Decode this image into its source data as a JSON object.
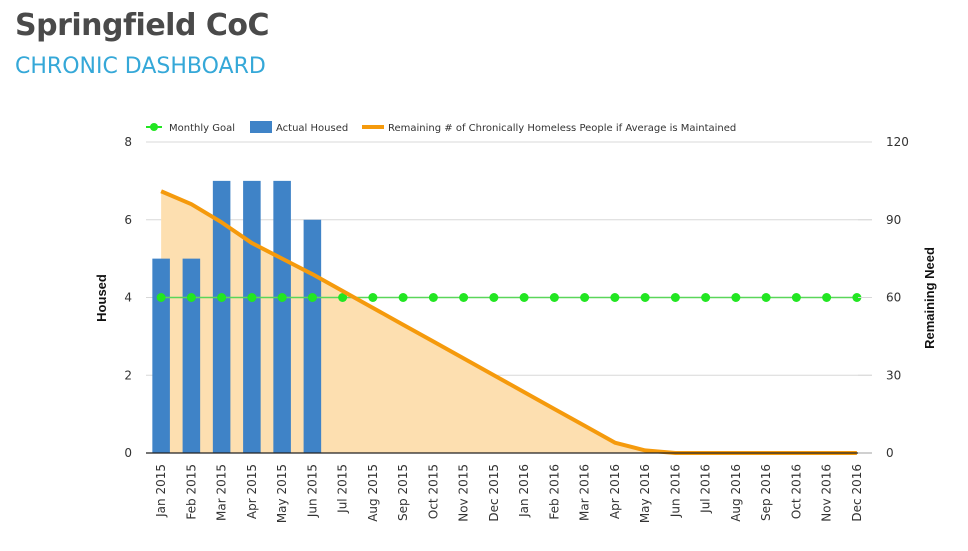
{
  "header": {
    "title": "Springfield CoC",
    "subtitle": "CHRONIC DASHBOARD"
  },
  "colors": {
    "title": "#4a4a4a",
    "subtitle": "#35a8d8",
    "goal": "#22e622",
    "bars": "#3f83c7",
    "remaining_line": "#f59a0c",
    "remaining_fill": "#fddfb0"
  },
  "chart_data": {
    "type": "bar",
    "title": "",
    "categories": [
      "Jan 2015",
      "Feb 2015",
      "Mar 2015",
      "Apr 2015",
      "May 2015",
      "Jun 2015",
      "Jul 2015",
      "Aug 2015",
      "Sep 2015",
      "Oct 2015",
      "Nov 2015",
      "Dec 2015",
      "Jan 2016",
      "Feb 2016",
      "Mar 2016",
      "Apr 2016",
      "May 2016",
      "Jun 2016",
      "Jul 2016",
      "Aug 2016",
      "Sep 2016",
      "Oct 2016",
      "Nov 2016",
      "Dec 2016"
    ],
    "legend": {
      "position": "top",
      "items": [
        "Monthly Goal",
        "Actual Housed",
        "Remaining # of Chronically Homeless People if Average is Maintained"
      ]
    },
    "y_left": {
      "label": "Housed",
      "range": [
        0,
        8
      ],
      "ticks": [
        "0",
        "2",
        "4",
        "6",
        "8"
      ]
    },
    "y_right": {
      "label": "Remaining Need",
      "range": [
        0,
        120
      ],
      "ticks": [
        "0",
        "30",
        "60",
        "90",
        "120"
      ]
    },
    "grid": true,
    "series": [
      {
        "name": "Monthly Goal",
        "type": "line",
        "axis": "left",
        "values": [
          4,
          4,
          4,
          4,
          4,
          4,
          4,
          4,
          4,
          4,
          4,
          4,
          4,
          4,
          4,
          4,
          4,
          4,
          4,
          4,
          4,
          4,
          4,
          4
        ]
      },
      {
        "name": "Actual Housed",
        "type": "bar",
        "axis": "left",
        "values": [
          5,
          5,
          7,
          7,
          7,
          6,
          null,
          null,
          null,
          null,
          null,
          null,
          null,
          null,
          null,
          null,
          null,
          null,
          null,
          null,
          null,
          null,
          null,
          null
        ]
      },
      {
        "name": "Remaining # of Chronically Homeless People if Average is Maintained",
        "type": "area",
        "axis": "right",
        "values": [
          101,
          96,
          89,
          81,
          75,
          69,
          62.5,
          56,
          49.5,
          43,
          36.5,
          30,
          23.5,
          17,
          10.5,
          4,
          1,
          0,
          0,
          0,
          0,
          0,
          0,
          0
        ]
      }
    ]
  }
}
